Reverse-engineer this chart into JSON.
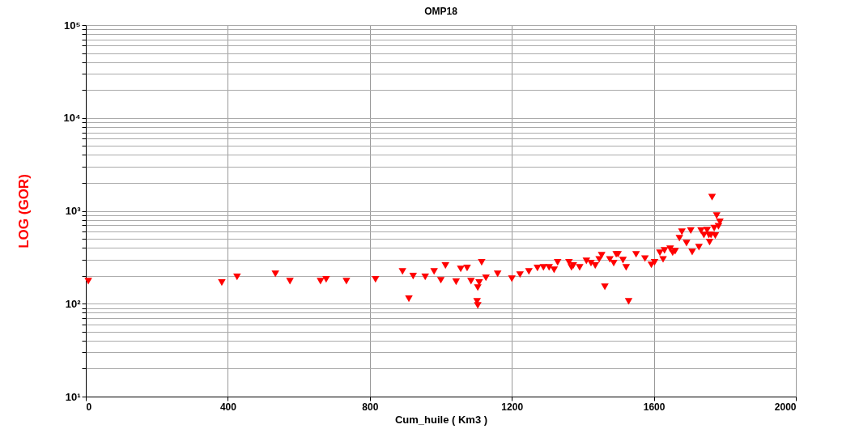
{
  "chart_data": {
    "type": "scatter",
    "title": "OMP18",
    "xlabel": "Cum_huile ( Km3 )",
    "ylabel": "LOG (GOR)",
    "log": "y",
    "grid": true,
    "marker": "triangle",
    "color": "#ff0000",
    "xlim": [
      0,
      2000
    ],
    "xticks": [
      0,
      400,
      800,
      1200,
      1600,
      2000
    ],
    "ylim": [
      10,
      100000
    ],
    "yticks": [
      {
        "value": 10,
        "label": "10¹"
      },
      {
        "value": 20,
        "label": null
      },
      {
        "value": 30,
        "label": null
      },
      {
        "value": 40,
        "label": null
      },
      {
        "value": 50,
        "label": null
      },
      {
        "value": 60,
        "label": null
      },
      {
        "value": 70,
        "label": null
      },
      {
        "value": 80,
        "label": null
      },
      {
        "value": 90,
        "label": null
      },
      {
        "value": 100,
        "label": "10²"
      },
      {
        "value": 200,
        "label": null
      },
      {
        "value": 300,
        "label": null
      },
      {
        "value": 400,
        "label": null
      },
      {
        "value": 500,
        "label": null
      },
      {
        "value": 600,
        "label": null
      },
      {
        "value": 700,
        "label": null
      },
      {
        "value": 800,
        "label": null
      },
      {
        "value": 900,
        "label": null
      },
      {
        "value": 1000,
        "label": "10³"
      },
      {
        "value": 2000,
        "label": null
      },
      {
        "value": 3000,
        "label": null
      },
      {
        "value": 4000,
        "label": null
      },
      {
        "value": 5000,
        "label": null
      },
      {
        "value": 6000,
        "label": null
      },
      {
        "value": 7000,
        "label": null
      },
      {
        "value": 8000,
        "label": null
      },
      {
        "value": 9000,
        "label": null
      },
      {
        "value": 10000,
        "label": "10⁴"
      },
      {
        "value": 20000,
        "label": null
      },
      {
        "value": 30000,
        "label": null
      },
      {
        "value": 40000,
        "label": null
      },
      {
        "value": 50000,
        "label": null
      },
      {
        "value": 60000,
        "label": null
      },
      {
        "value": 70000,
        "label": null
      },
      {
        "value": 80000,
        "label": null
      },
      {
        "value": 90000,
        "label": null
      },
      {
        "value": 100000,
        "label": "10⁵"
      }
    ],
    "x": [
      7,
      383,
      426,
      534,
      575,
      661,
      677,
      734,
      816,
      892,
      910,
      922,
      956,
      981,
      1000,
      1013,
      1043,
      1056,
      1074,
      1085,
      1104,
      1102,
      1104,
      1108,
      1115,
      1127,
      1160,
      1200,
      1223,
      1248,
      1272,
      1289,
      1305,
      1319,
      1329,
      1361,
      1368,
      1373,
      1391,
      1410,
      1423,
      1435,
      1446,
      1453,
      1462,
      1476,
      1487,
      1499,
      1513,
      1522,
      1529,
      1494,
      1550,
      1575,
      1593,
      1602,
      1617,
      1630,
      1626,
      1646,
      1653,
      1660,
      1672,
      1679,
      1692,
      1704,
      1708,
      1727,
      1733,
      1750,
      1757,
      1761,
      1764,
      1770,
      1773,
      1777,
      1782,
      1786,
      1755,
      1741
    ],
    "values": [
      175,
      169,
      194,
      210,
      175,
      175,
      183,
      175,
      183,
      223,
      113,
      198,
      194,
      223,
      179,
      257,
      172,
      237,
      242,
      175,
      149,
      106,
      96,
      169,
      279,
      190,
      210,
      186,
      206,
      223,
      242,
      246,
      246,
      232,
      279,
      279,
      246,
      257,
      246,
      289,
      273,
      257,
      300,
      333,
      152,
      300,
      273,
      340,
      295,
      246,
      106,
      340,
      340,
      306,
      262,
      279,
      354,
      375,
      300,
      390,
      354,
      368,
      508,
      595,
      450,
      612,
      360,
      406,
      612,
      620,
      460,
      550,
      1400,
      650,
      540,
      890,
      680,
      760,
      550,
      550
    ]
  }
}
